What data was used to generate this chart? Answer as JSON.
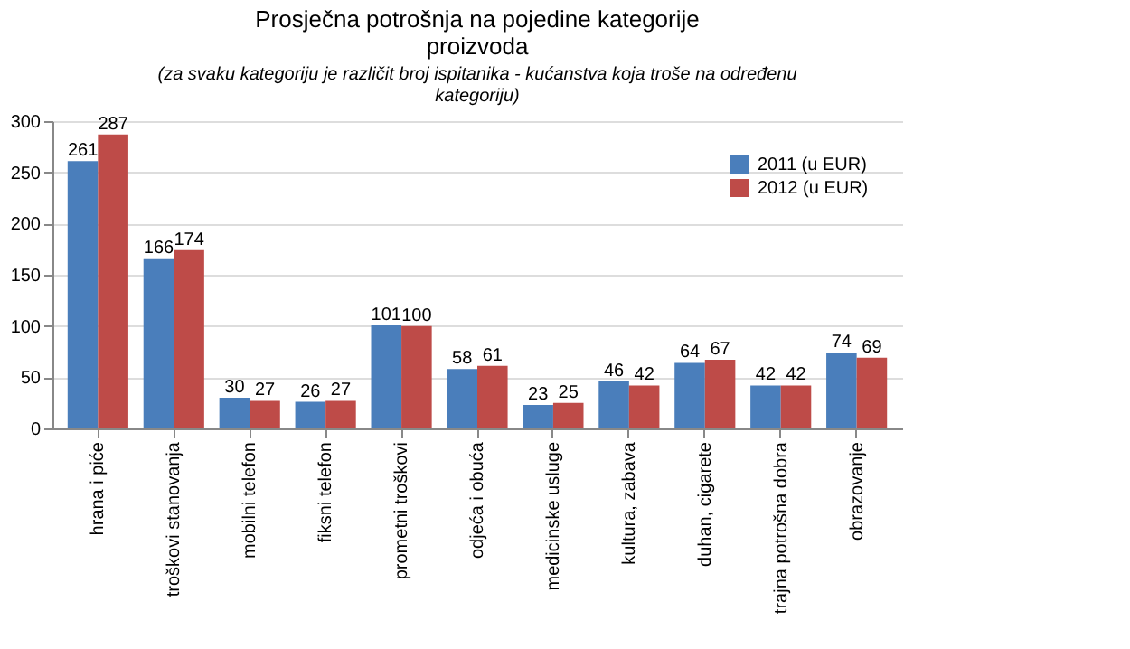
{
  "chart_data": {
    "type": "bar",
    "title": [
      "Prosječna potrošnja na pojedine kategorije",
      "proizvoda"
    ],
    "subtitle": [
      "(za svaku kategoriju je različit broj ispitanika - kućanstva koja troše na određenu",
      "kategoriju)"
    ],
    "categories": [
      "hrana i piće",
      "troškovi stanovanja",
      "mobilni telefon",
      "fiksni telefon",
      "prometni troškovi",
      "odjeća i obuća",
      "medicinske usluge",
      "kultura, zabava",
      "duhan, cigarete",
      "trajna potrošna dobra",
      "obrazovanje"
    ],
    "series": [
      {
        "name": "2011 (u EUR)",
        "color": "#4a7ebb",
        "values": [
          261,
          166,
          30,
          26,
          101,
          58,
          23,
          46,
          64,
          42,
          74
        ]
      },
      {
        "name": "2012 (u EUR)",
        "color": "#be4b48",
        "values": [
          287,
          174,
          27,
          27,
          100,
          61,
          25,
          42,
          67,
          42,
          69
        ]
      }
    ],
    "ylim": [
      0,
      300
    ],
    "yticks": [
      0,
      50,
      100,
      150,
      200,
      250,
      300
    ],
    "grid": "y",
    "legend": "top right",
    "data_labels": true
  }
}
